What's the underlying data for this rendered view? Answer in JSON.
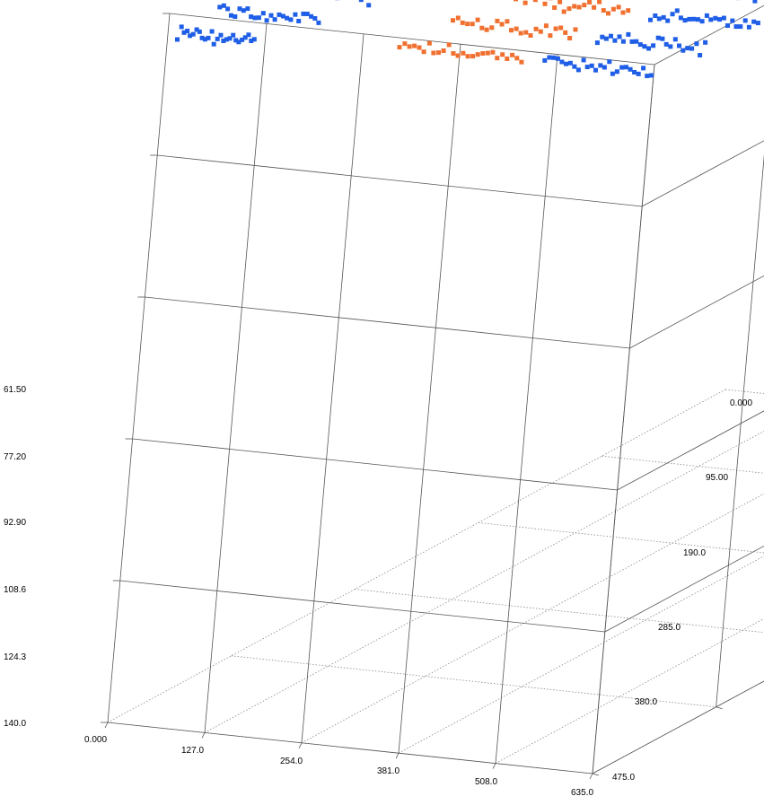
{
  "chart_data": {
    "type": "scatter",
    "title": "",
    "xlabel": "",
    "ylabel": "",
    "zlabel": "",
    "grid": true,
    "colors": {
      "series_a": "#1f5ee6",
      "series_b": "#f07030",
      "frame": "#555555",
      "grid": "#888888"
    },
    "x_axis": {
      "range": [
        0,
        635
      ],
      "ticks": [
        "0.000",
        "127.0",
        "254.0",
        "381.0",
        "508.0",
        "635.0"
      ]
    },
    "y_axis": {
      "range": [
        0,
        475
      ],
      "ticks": [
        "0.000",
        "95.00",
        "190.0",
        "285.0",
        "380.0",
        "475.0"
      ]
    },
    "z_axis": {
      "range": [
        61.5,
        140
      ],
      "ticks": [
        "61.50",
        "77.20",
        "92.90",
        "108.6",
        "124.3",
        "140.0"
      ]
    },
    "series": [
      {
        "color": "#1f5ee6",
        "stripes": [
          {
            "x": [
              0,
              100
            ],
            "y": [
              8,
              8
            ]
          },
          {
            "x": [
              0,
              130
            ],
            "y": [
              40,
              40
            ]
          },
          {
            "x": [
              20,
              150
            ],
            "y": [
              70,
              70
            ]
          },
          {
            "x": [
              40,
              170
            ],
            "y": [
              100,
              100
            ]
          },
          {
            "x": [
              55,
              185
            ],
            "y": [
              130,
              130
            ]
          },
          {
            "x": [
              70,
              200
            ],
            "y": [
              160,
              160
            ]
          },
          {
            "x": [
              80,
              210
            ],
            "y": [
              190,
              190
            ]
          },
          {
            "x": [
              95,
              225
            ],
            "y": [
              220,
              220
            ]
          },
          {
            "x": [
              105,
              235
            ],
            "y": [
              250,
              250
            ]
          },
          {
            "x": [
              120,
              250
            ],
            "y": [
              280,
              280
            ]
          },
          {
            "x": [
              130,
              260
            ],
            "y": [
              310,
              310
            ]
          },
          {
            "x": [
              145,
              275
            ],
            "y": [
              340,
              340
            ]
          },
          {
            "x": [
              155,
              285
            ],
            "y": [
              370,
              370
            ]
          },
          {
            "x": [
              165,
              295
            ],
            "y": [
              400,
              400
            ]
          },
          {
            "x": [
              175,
              305
            ],
            "y": [
              430,
              430
            ]
          },
          {
            "x": [
              460,
              600
            ],
            "y": [
              20,
              20
            ]
          },
          {
            "x": [
              470,
              610
            ],
            "y": [
              55,
              55
            ]
          },
          {
            "x": [
              480,
              620
            ],
            "y": [
              90,
              90
            ]
          },
          {
            "x": [
              490,
              630
            ],
            "y": [
              125,
              125
            ]
          },
          {
            "x": [
              500,
              635
            ],
            "y": [
              160,
              160
            ]
          },
          {
            "x": [
              505,
              635
            ],
            "y": [
              195,
              195
            ]
          },
          {
            "x": [
              515,
              635
            ],
            "y": [
              230,
              230
            ]
          },
          {
            "x": [
              520,
              635
            ],
            "y": [
              265,
              265
            ]
          },
          {
            "x": [
              530,
              635
            ],
            "y": [
              300,
              300
            ]
          },
          {
            "x": [
              535,
              635
            ],
            "y": [
              335,
              335
            ]
          },
          {
            "x": [
              545,
              635
            ],
            "y": [
              370,
              370
            ]
          },
          {
            "x": [
              555,
              635
            ],
            "y": [
              405,
              405
            ]
          },
          {
            "x": [
              565,
              635
            ],
            "y": [
              440,
              440
            ]
          }
        ]
      },
      {
        "color": "#f07030",
        "stripes": [
          {
            "x": [
              270,
              430
            ],
            "y": [
              20,
              20
            ]
          },
          {
            "x": [
              280,
              440
            ],
            "y": [
              55,
              55
            ]
          },
          {
            "x": [
              290,
              450
            ],
            "y": [
              90,
              90
            ]
          },
          {
            "x": [
              300,
              460
            ],
            "y": [
              125,
              125
            ]
          },
          {
            "x": [
              310,
              470
            ],
            "y": [
              160,
              160
            ]
          },
          {
            "x": [
              320,
              480
            ],
            "y": [
              195,
              195
            ]
          },
          {
            "x": [
              330,
              490
            ],
            "y": [
              230,
              230
            ]
          },
          {
            "x": [
              340,
              500
            ],
            "y": [
              265,
              265
            ]
          },
          {
            "x": [
              350,
              510
            ],
            "y": [
              300,
              300
            ]
          },
          {
            "x": [
              360,
              520
            ],
            "y": [
              335,
              335
            ]
          },
          {
            "x": [
              370,
              530
            ],
            "y": [
              370,
              370
            ]
          },
          {
            "x": [
              380,
              540
            ],
            "y": [
              405,
              405
            ]
          },
          {
            "x": [
              390,
              550
            ],
            "y": [
              440,
              440
            ]
          }
        ]
      }
    ]
  }
}
